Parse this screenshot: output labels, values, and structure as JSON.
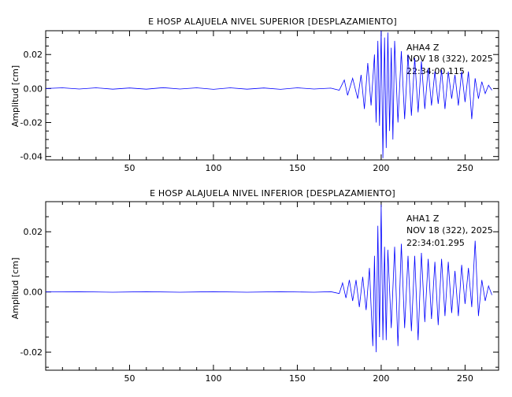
{
  "figure_colors": {
    "trace": "#0000ff",
    "axes": "#000000",
    "background": "#ffffff"
  },
  "chart_data": [
    {
      "type": "line",
      "title": "E HOSP ALAJUELA NIVEL SUPERIOR [DESPLAZAMIENTO]",
      "xlabel": "",
      "ylabel": "Amplitud [cm]",
      "xlim": [
        0,
        270
      ],
      "ylim": [
        -0.042,
        0.034
      ],
      "xticks": [
        50,
        100,
        150,
        200,
        250
      ],
      "xtick_labels": [
        "50",
        "100",
        "150",
        "200",
        "250"
      ],
      "yticks": [
        -0.04,
        -0.02,
        0.0,
        0.02
      ],
      "ytick_labels": [
        "-0.04",
        "-0.02",
        "0.00",
        "0.02"
      ],
      "annotation": {
        "station": "AHA4   Z",
        "date": "NOV 18 (322), 2025",
        "time": "22:34:00.115"
      },
      "series": [
        {
          "x": [
            0,
            10,
            20,
            30,
            40,
            50,
            60,
            70,
            80,
            90,
            100,
            110,
            120,
            130,
            140,
            150,
            160,
            170,
            175,
            178,
            180,
            183,
            186,
            188,
            190,
            192,
            194,
            196,
            197,
            198,
            199,
            200,
            201,
            202,
            203,
            204,
            205,
            206,
            207,
            208,
            210,
            212,
            214,
            216,
            218,
            220,
            222,
            224,
            226,
            228,
            230,
            232,
            234,
            236,
            238,
            240,
            242,
            244,
            246,
            248,
            250,
            252,
            254,
            256,
            258,
            260,
            262,
            264,
            266
          ],
          "y": [
            0.0,
            0.0004,
            -0.0003,
            0.0004,
            -0.0004,
            0.0003,
            -0.0004,
            0.0005,
            -0.0003,
            0.0004,
            -0.0005,
            0.0004,
            -0.0004,
            0.0003,
            -0.0005,
            0.0004,
            -0.0003,
            0.0002,
            -0.001,
            0.005,
            -0.004,
            0.006,
            -0.006,
            0.008,
            -0.012,
            0.015,
            -0.01,
            0.02,
            -0.02,
            0.028,
            -0.022,
            0.034,
            -0.041,
            0.03,
            -0.035,
            0.033,
            -0.025,
            0.024,
            -0.03,
            0.028,
            -0.02,
            0.022,
            -0.018,
            0.02,
            -0.016,
            0.018,
            -0.014,
            0.016,
            -0.012,
            0.012,
            -0.01,
            0.01,
            -0.009,
            0.011,
            -0.012,
            0.01,
            -0.006,
            0.008,
            -0.01,
            0.01,
            -0.008,
            0.01,
            -0.018,
            0.006,
            -0.006,
            0.004,
            -0.003,
            0.002,
            -0.001
          ]
        }
      ]
    },
    {
      "type": "line",
      "title": "E HOSP ALAJUELA NIVEL INFERIOR [DESPLAZAMIENTO]",
      "xlabel": "",
      "ylabel": "Amplitud [cm]",
      "xlim": [
        0,
        270
      ],
      "ylim": [
        -0.026,
        0.03
      ],
      "xticks": [
        50,
        100,
        150,
        200,
        250
      ],
      "xtick_labels": [
        "50",
        "100",
        "150",
        "200",
        "250"
      ],
      "yticks": [
        -0.02,
        0.0,
        0.02
      ],
      "ytick_labels": [
        "-0.02",
        "0.00",
        "0.02"
      ],
      "annotation": {
        "station": "AHA1   Z",
        "date": "NOV 18 (322), 2025",
        "time": "22:34:01.295"
      },
      "series": [
        {
          "x": [
            0,
            20,
            40,
            60,
            80,
            100,
            120,
            140,
            160,
            170,
            175,
            177,
            179,
            181,
            183,
            185,
            187,
            189,
            191,
            193,
            195,
            196,
            197,
            198,
            199,
            200,
            201,
            202,
            203,
            204,
            206,
            208,
            210,
            212,
            214,
            216,
            218,
            220,
            222,
            224,
            226,
            228,
            230,
            232,
            234,
            236,
            238,
            240,
            242,
            244,
            246,
            248,
            250,
            252,
            254,
            256,
            258,
            260,
            262,
            264,
            266
          ],
          "y": [
            0.0,
            0.0001,
            -0.0001,
            0.0001,
            -0.0001,
            0.0001,
            -0.0001,
            0.0001,
            -0.0001,
            0.0001,
            -0.0005,
            0.003,
            -0.002,
            0.004,
            -0.003,
            0.004,
            -0.005,
            0.005,
            -0.006,
            0.008,
            -0.018,
            0.012,
            -0.02,
            0.022,
            -0.015,
            0.029,
            -0.016,
            0.015,
            -0.016,
            0.014,
            -0.012,
            0.015,
            -0.018,
            0.016,
            -0.012,
            0.012,
            -0.013,
            0.012,
            -0.016,
            0.013,
            -0.01,
            0.011,
            -0.009,
            0.01,
            -0.011,
            0.011,
            -0.008,
            0.01,
            -0.007,
            0.007,
            -0.008,
            0.009,
            -0.004,
            0.008,
            -0.005,
            0.017,
            -0.008,
            0.004,
            -0.003,
            0.002,
            -0.001
          ]
        }
      ]
    }
  ]
}
